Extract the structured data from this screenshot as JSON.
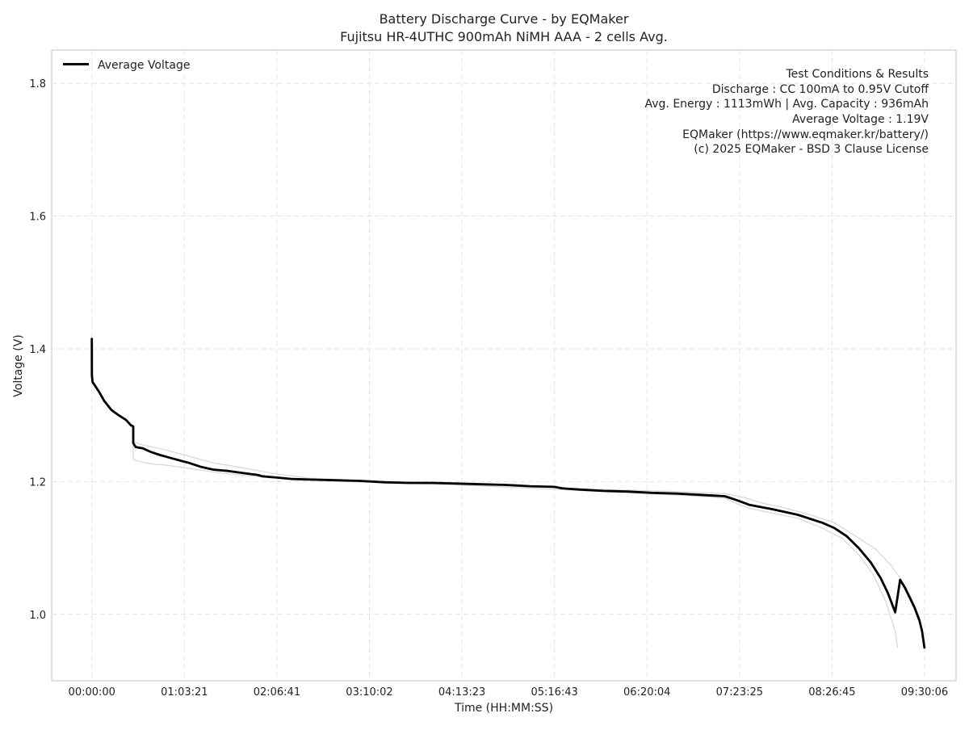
{
  "chart_data": {
    "type": "line",
    "title": "Battery Discharge Curve - by EQMaker",
    "subtitle": "Fujitsu HR-4UTHC 900mAh NiMH AAA - 2 cells Avg.",
    "xlabel": "Time (HH:MM:SS)",
    "ylabel": "Voltage (V)",
    "x_unit": "seconds",
    "xlim": [
      -1650,
      35500
    ],
    "ylim": [
      0.9,
      1.85
    ],
    "x_ticks": [
      0,
      3801,
      7601,
      11402,
      15203,
      19003,
      22804,
      26605,
      30405,
      34206
    ],
    "x_tick_labels": [
      "00:00:00",
      "01:03:21",
      "02:06:41",
      "03:10:02",
      "04:13:23",
      "05:16:43",
      "06:20:04",
      "07:23:25",
      "08:26:45",
      "09:30:06"
    ],
    "y_ticks": [
      1.0,
      1.2,
      1.4,
      1.6,
      1.8
    ],
    "y_tick_labels": [
      "1.0",
      "1.2",
      "1.4",
      "1.6",
      "1.8"
    ],
    "grid": true,
    "legend": {
      "position": "top-left",
      "entries": [
        {
          "label": "Average Voltage",
          "color": "#000000"
        }
      ]
    },
    "annotation_box": {
      "position": "top-right",
      "lines": [
        "Test Conditions & Results",
        "Discharge : CC 100mA to 0.95V Cutoff",
        "Avg. Energy : 1113mWh | Avg. Capacity : 936mAh",
        "Average Voltage : 1.19V",
        "EQMaker (https://www.eqmaker.kr/battery/)",
        "(c) 2025 EQMaker - BSD 3 Clause License"
      ]
    },
    "series": [
      {
        "name": "Average Voltage",
        "color": "#000000",
        "style": "solid-thick",
        "x": [
          0,
          1,
          30,
          120,
          300,
          500,
          800,
          1100,
          1400,
          1600,
          1700,
          1701,
          1800,
          2100,
          2400,
          2800,
          3200,
          3600,
          4000,
          4500,
          5000,
          5600,
          6200,
          6800,
          7000,
          7300,
          7600,
          8200,
          9000,
          10000,
          11000,
          12000,
          13000,
          14000,
          15000,
          16000,
          17000,
          18000,
          19000,
          19300,
          19600,
          20000,
          21000,
          22000,
          23000,
          24000,
          25000,
          26000,
          26500,
          27000,
          28000,
          29000,
          30000,
          30500,
          31000,
          31500,
          32000,
          32400,
          32700,
          33000,
          33200,
          33300,
          33400,
          33600,
          33800,
          34000,
          34100,
          34200
        ],
        "y": [
          1.415,
          1.36,
          1.35,
          1.345,
          1.335,
          1.322,
          1.308,
          1.3,
          1.293,
          1.285,
          1.283,
          1.258,
          1.252,
          1.25,
          1.245,
          1.24,
          1.236,
          1.232,
          1.228,
          1.222,
          1.218,
          1.216,
          1.213,
          1.21,
          1.208,
          1.207,
          1.206,
          1.204,
          1.203,
          1.202,
          1.201,
          1.199,
          1.198,
          1.198,
          1.197,
          1.196,
          1.195,
          1.193,
          1.192,
          1.19,
          1.189,
          1.188,
          1.186,
          1.185,
          1.183,
          1.182,
          1.18,
          1.178,
          1.172,
          1.165,
          1.158,
          1.15,
          1.138,
          1.13,
          1.118,
          1.1,
          1.078,
          1.055,
          1.032,
          1.003,
          1.052,
          1.046,
          1.04,
          1.025,
          1.01,
          0.99,
          0.975,
          0.95
        ]
      },
      {
        "name": "",
        "color": "#d9d9d9",
        "style": "thin",
        "x": [
          1700,
          1701,
          1800,
          2200,
          2600,
          3000,
          3600,
          4500,
          5500,
          7000,
          9000,
          12000,
          15000,
          18000,
          21000,
          24000,
          26000,
          26600,
          27000,
          28000,
          29000,
          30000,
          30800,
          31500,
          32100,
          32600,
          33000,
          33100
        ],
        "y": [
          1.283,
          1.235,
          1.232,
          1.228,
          1.226,
          1.225,
          1.222,
          1.217,
          1.212,
          1.207,
          1.202,
          1.198,
          1.195,
          1.19,
          1.185,
          1.18,
          1.175,
          1.165,
          1.16,
          1.152,
          1.145,
          1.13,
          1.115,
          1.09,
          1.06,
          1.02,
          0.975,
          0.95
        ]
      },
      {
        "name": "",
        "color": "#d9d9d9",
        "style": "thin",
        "x": [
          1700,
          1701,
          2000,
          2500,
          3000,
          3500,
          4000,
          5000,
          6000,
          7500,
          9000,
          12000,
          15000,
          18000,
          21000,
          24000,
          26000,
          26800,
          27500,
          28500,
          29500,
          30500,
          31500,
          32200,
          32800,
          33200,
          33600,
          34000,
          34200
        ],
        "y": [
          1.283,
          1.26,
          1.256,
          1.252,
          1.248,
          1.243,
          1.238,
          1.228,
          1.222,
          1.212,
          1.205,
          1.2,
          1.197,
          1.192,
          1.188,
          1.185,
          1.182,
          1.176,
          1.168,
          1.16,
          1.15,
          1.138,
          1.115,
          1.098,
          1.075,
          1.055,
          1.03,
          0.995,
          0.955
        ]
      }
    ]
  }
}
